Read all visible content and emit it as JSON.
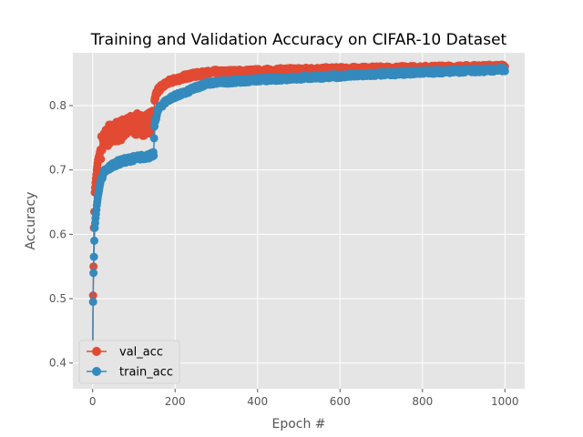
{
  "chart_data": {
    "type": "line",
    "title": "Training and Validation Accuracy on CIFAR-10 Dataset",
    "xlabel": "Epoch #",
    "ylabel": "Accuracy",
    "xlim": [
      -48,
      1048
    ],
    "ylim": [
      0.36,
      0.882
    ],
    "x_ticks": [
      0,
      200,
      400,
      600,
      800,
      1000
    ],
    "y_ticks": [
      0.4,
      0.5,
      0.6,
      0.7,
      0.8
    ],
    "x_tick_labels": [
      "0",
      "200",
      "400",
      "600",
      "800",
      "1000"
    ],
    "y_tick_labels": [
      "0.4",
      "0.5",
      "0.6",
      "0.7",
      "0.8"
    ],
    "grid": true,
    "legend_position": "lower-left",
    "series": [
      {
        "name": "val_acc",
        "color": "#E24A33",
        "points": [
          [
            0,
            0.41
          ],
          [
            1,
            0.505
          ],
          [
            2,
            0.55
          ],
          [
            3,
            0.61
          ],
          [
            4,
            0.635
          ],
          [
            5,
            0.665
          ],
          [
            7,
            0.68
          ],
          [
            10,
            0.7
          ],
          [
            13,
            0.715
          ],
          [
            17,
            0.725
          ],
          [
            20,
            0.735
          ],
          [
            25,
            0.745
          ],
          [
            30,
            0.75
          ],
          [
            40,
            0.755
          ],
          [
            50,
            0.755
          ],
          [
            60,
            0.76
          ],
          [
            80,
            0.765
          ],
          [
            100,
            0.77
          ],
          [
            120,
            0.77
          ],
          [
            140,
            0.775
          ],
          [
            148,
            0.775
          ],
          [
            150,
            0.81
          ],
          [
            155,
            0.82
          ],
          [
            160,
            0.825
          ],
          [
            170,
            0.83
          ],
          [
            180,
            0.835
          ],
          [
            200,
            0.84
          ],
          [
            225,
            0.845
          ],
          [
            250,
            0.848
          ],
          [
            275,
            0.85
          ],
          [
            300,
            0.852
          ],
          [
            400,
            0.854
          ],
          [
            500,
            0.856
          ],
          [
            600,
            0.857
          ],
          [
            700,
            0.858
          ],
          [
            800,
            0.859
          ],
          [
            900,
            0.86
          ],
          [
            1000,
            0.861
          ]
        ],
        "bands": [
          {
            "x": [
              20,
              148
            ],
            "amplitude": 0.018
          },
          {
            "x": [
              148,
              300
            ],
            "amplitude": 0.004
          },
          {
            "x": [
              300,
              1000
            ],
            "amplitude": 0.003
          }
        ]
      },
      {
        "name": "train_acc",
        "color": "#348ABD",
        "points": [
          [
            0,
            0.39
          ],
          [
            1,
            0.495
          ],
          [
            2,
            0.54
          ],
          [
            3,
            0.565
          ],
          [
            4,
            0.59
          ],
          [
            5,
            0.61
          ],
          [
            7,
            0.625
          ],
          [
            10,
            0.645
          ],
          [
            13,
            0.66
          ],
          [
            17,
            0.675
          ],
          [
            20,
            0.685
          ],
          [
            25,
            0.693
          ],
          [
            30,
            0.698
          ],
          [
            40,
            0.703
          ],
          [
            50,
            0.708
          ],
          [
            60,
            0.711
          ],
          [
            80,
            0.715
          ],
          [
            100,
            0.718
          ],
          [
            120,
            0.72
          ],
          [
            140,
            0.722
          ],
          [
            148,
            0.724
          ],
          [
            150,
            0.77
          ],
          [
            155,
            0.785
          ],
          [
            160,
            0.795
          ],
          [
            170,
            0.802
          ],
          [
            180,
            0.808
          ],
          [
            200,
            0.815
          ],
          [
            225,
            0.82
          ],
          [
            250,
            0.828
          ],
          [
            275,
            0.834
          ],
          [
            300,
            0.836
          ],
          [
            400,
            0.84
          ],
          [
            500,
            0.843
          ],
          [
            600,
            0.846
          ],
          [
            700,
            0.849
          ],
          [
            800,
            0.852
          ],
          [
            900,
            0.854
          ],
          [
            1000,
            0.856
          ]
        ],
        "bands": [
          {
            "x": [
              20,
              148
            ],
            "amplitude": 0.004
          },
          {
            "x": [
              148,
              300
            ],
            "amplitude": 0.003
          },
          {
            "x": [
              300,
              1000
            ],
            "amplitude": 0.003
          }
        ]
      }
    ]
  }
}
